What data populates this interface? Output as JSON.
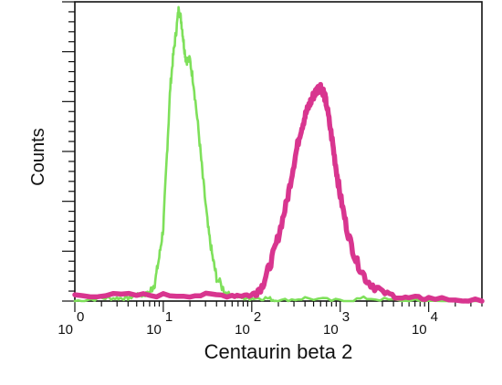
{
  "chart_data": {
    "type": "line",
    "title": "",
    "xlabel": "Centaurin beta 2",
    "ylabel": "Counts",
    "x_scale": "log",
    "xlim": [
      1,
      40000
    ],
    "ylim": [
      0,
      100
    ],
    "grid": false,
    "legend": "none",
    "x_ticks": [
      {
        "base": "10",
        "exp": "0",
        "value": 1
      },
      {
        "base": "10",
        "exp": "1",
        "value": 10
      },
      {
        "base": "10",
        "exp": "2",
        "value": 100
      },
      {
        "base": "10",
        "exp": "3",
        "value": 1000
      },
      {
        "base": "10",
        "exp": "4",
        "value": 10000
      }
    ],
    "series": [
      {
        "color": "#7ee05a",
        "x": [
          1,
          2,
          3,
          4,
          5,
          6,
          7,
          8,
          9,
          10,
          11,
          12,
          13,
          14,
          15,
          16,
          17,
          18,
          20,
          22,
          25,
          28,
          32,
          36,
          40,
          50,
          60,
          80,
          100,
          150,
          200,
          400,
          1000,
          2000,
          5000,
          10000,
          40000
        ],
        "y": [
          0,
          1,
          1,
          1,
          2,
          2,
          3,
          6,
          15,
          25,
          50,
          73,
          84,
          92,
          100,
          95,
          88,
          82,
          82,
          74,
          58,
          42,
          25,
          15,
          8,
          3,
          2,
          1,
          1,
          1,
          0,
          1,
          0,
          1,
          0,
          0,
          0
        ]
      },
      {
        "color": "#d8358f",
        "x": [
          1,
          5,
          20,
          60,
          100,
          130,
          160,
          200,
          250,
          300,
          350,
          400,
          450,
          500,
          550,
          600,
          650,
          700,
          800,
          900,
          1000,
          1200,
          1500,
          2000,
          3000,
          5000,
          10000,
          40000
        ],
        "y": [
          2,
          2,
          2,
          2,
          2,
          5,
          12,
          22,
          34,
          47,
          57,
          63,
          67,
          70,
          72,
          73,
          71,
          67,
          56,
          45,
          36,
          24,
          14,
          7,
          3,
          1,
          1,
          0
        ]
      }
    ]
  }
}
